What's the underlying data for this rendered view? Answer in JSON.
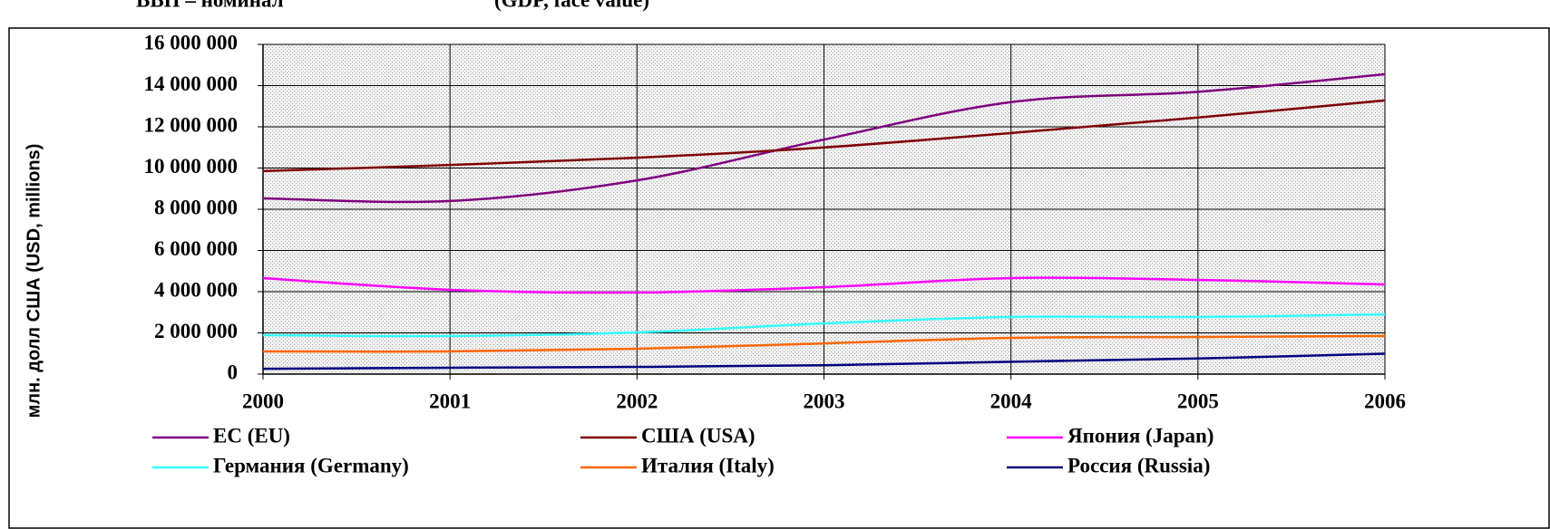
{
  "chart_data": {
    "type": "line",
    "title": "ВВП – номинал",
    "title_en": "(GDP, face value)",
    "ylabel": "млн. долл США (USD, millions)",
    "x": [
      2000,
      2001,
      2002,
      2003,
      2004,
      2005,
      2006
    ],
    "xlim": [
      2000,
      2006
    ],
    "xticks": [
      2000,
      2001,
      2002,
      2003,
      2004,
      2005,
      2006
    ],
    "ylim": [
      0,
      16000000
    ],
    "yticks": [
      0,
      {
        "value": 2000000,
        "label": "2 000 000"
      },
      {
        "value": 4000000,
        "label": "4 000 000"
      },
      {
        "value": 6000000,
        "label": "6 000 000"
      },
      {
        "value": 8000000,
        "label": "8 000 000"
      },
      {
        "value": 10000000,
        "label": "10 000 000"
      },
      {
        "value": 12000000,
        "label": "12 000 000"
      },
      {
        "value": 14000000,
        "label": "14 000 000"
      },
      {
        "value": 16000000,
        "label": "16 000 000"
      }
    ],
    "grid": true,
    "legend": "bottom",
    "series": [
      {
        "name": "ЕС (EU)",
        "color": "#800080",
        "values": [
          8530000,
          8400000,
          9400000,
          11380000,
          13200000,
          13700000,
          14550000
        ]
      },
      {
        "name": "США (USA)",
        "color": "#800000",
        "values": [
          9850000,
          10150000,
          10500000,
          11000000,
          11700000,
          12450000,
          13280000
        ]
      },
      {
        "name": "Япония (Japan)",
        "color": "#ff00ff",
        "values": [
          4660000,
          4090000,
          3960000,
          4220000,
          4660000,
          4570000,
          4350000
        ]
      },
      {
        "name": "Германия (Germany)",
        "color": "#33ffff",
        "values": [
          1890000,
          1850000,
          2020000,
          2460000,
          2770000,
          2770000,
          2900000
        ]
      },
      {
        "name": "Италия (Italy)",
        "color": "#ff6600",
        "values": [
          1100000,
          1100000,
          1230000,
          1490000,
          1760000,
          1800000,
          1850000
        ]
      },
      {
        "name": "Россия (Russia)",
        "color": "#000080",
        "values": [
          260000,
          310000,
          350000,
          430000,
          600000,
          760000,
          990000
        ]
      }
    ]
  }
}
